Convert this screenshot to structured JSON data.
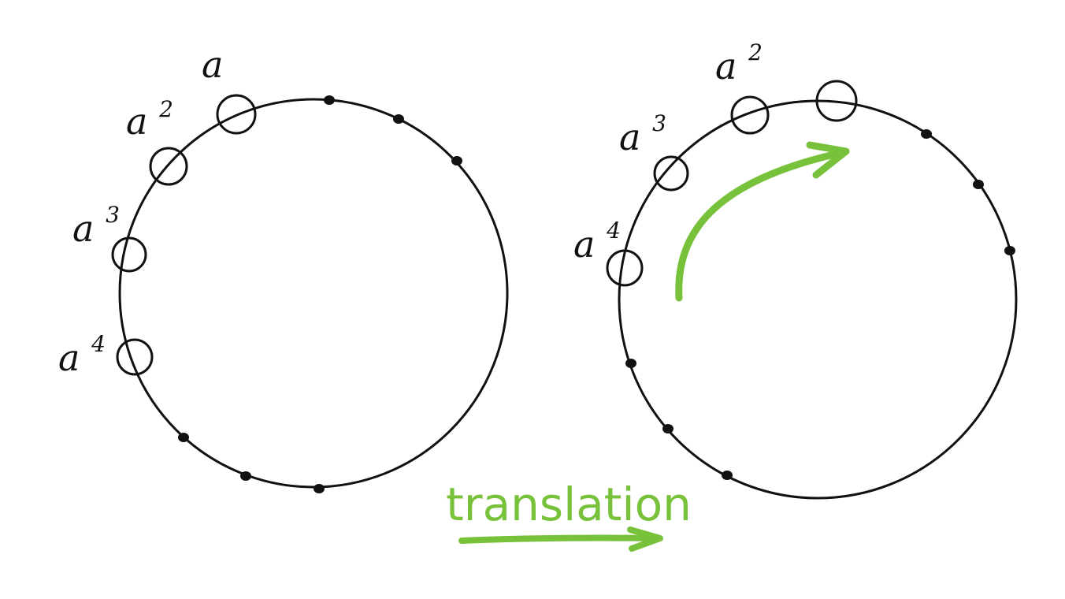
{
  "colors": {
    "ink": "#111111",
    "accent": "#77c23a",
    "background": "#ffffff"
  },
  "left_circle": {
    "labels": [
      {
        "base": "a",
        "exp": ""
      },
      {
        "base": "a",
        "exp": "2"
      },
      {
        "base": "a",
        "exp": "3"
      },
      {
        "base": "a",
        "exp": "4"
      }
    ],
    "dot_count": 6
  },
  "right_circle": {
    "labels": [
      {
        "base": "a",
        "exp": "2"
      },
      {
        "base": "a",
        "exp": "3"
      },
      {
        "base": "a",
        "exp": "4"
      }
    ],
    "empty_marker_count": 1,
    "dot_count": 6,
    "arrow_icon": "curved-arrow-icon"
  },
  "caption": {
    "text": "translation",
    "arrow_icon": "right-arrow-icon"
  }
}
